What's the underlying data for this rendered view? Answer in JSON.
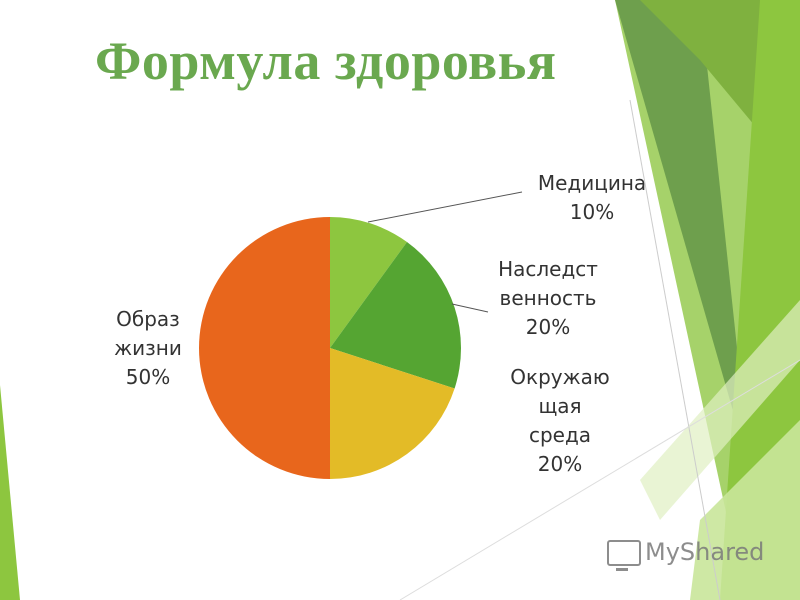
{
  "slide": {
    "title": "Формула здоровья",
    "watermark": "MyShared"
  },
  "colors": {
    "title": "#6aa84f",
    "accent_light": "#8dc63f",
    "accent_dark": "#5a9a2b"
  },
  "chart_data": {
    "type": "pie",
    "title": "",
    "slices": [
      {
        "label": [
          "Медицина",
          "10%"
        ],
        "value": 10,
        "color": "#8dc63f"
      },
      {
        "label": [
          "Наследст",
          "венность",
          "20%"
        ],
        "value": 20,
        "color": "#55a532"
      },
      {
        "label": [
          "Окружаю",
          "щая",
          "среда",
          "20%"
        ],
        "value": 20,
        "color": "#e3bb27"
      },
      {
        "label": [
          "Образ",
          "жизни",
          "50%"
        ],
        "value": 50,
        "color": "#e8661c"
      }
    ],
    "start": "12 o'clock",
    "direction": "clockwise",
    "legend": "none",
    "data_labels": "outside"
  }
}
